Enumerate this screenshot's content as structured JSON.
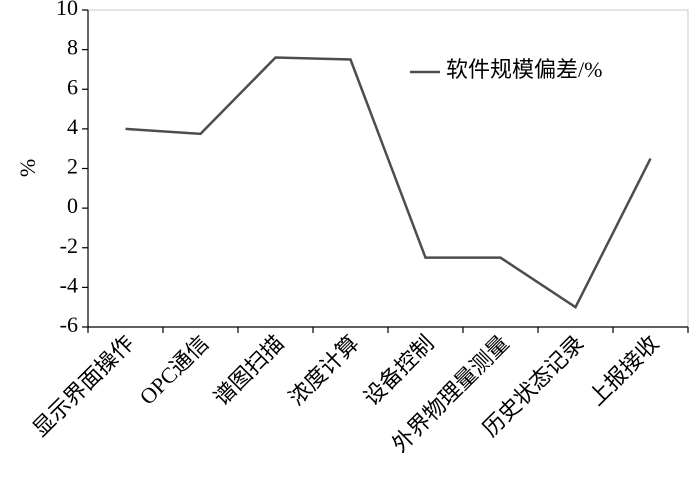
{
  "chart_data": {
    "type": "line",
    "y_label": "%",
    "categories": [
      "显示界面操作",
      "OPC通信",
      "谱图扫描",
      "浓度计算",
      "设备控制",
      "外界物理量测量",
      "历史状态记录",
      "上报接收"
    ],
    "series": [
      {
        "name": "软件规模偏差/%",
        "color": "#4d4d4d",
        "values": [
          4.0,
          3.75,
          7.6,
          7.5,
          -2.5,
          -2.5,
          -5.0,
          2.5
        ]
      }
    ],
    "ylim": [
      -6,
      10
    ],
    "yticks": [
      -6,
      -4,
      -2,
      0,
      2,
      4,
      6,
      8,
      10
    ],
    "grid": false,
    "legend": "upper right"
  }
}
